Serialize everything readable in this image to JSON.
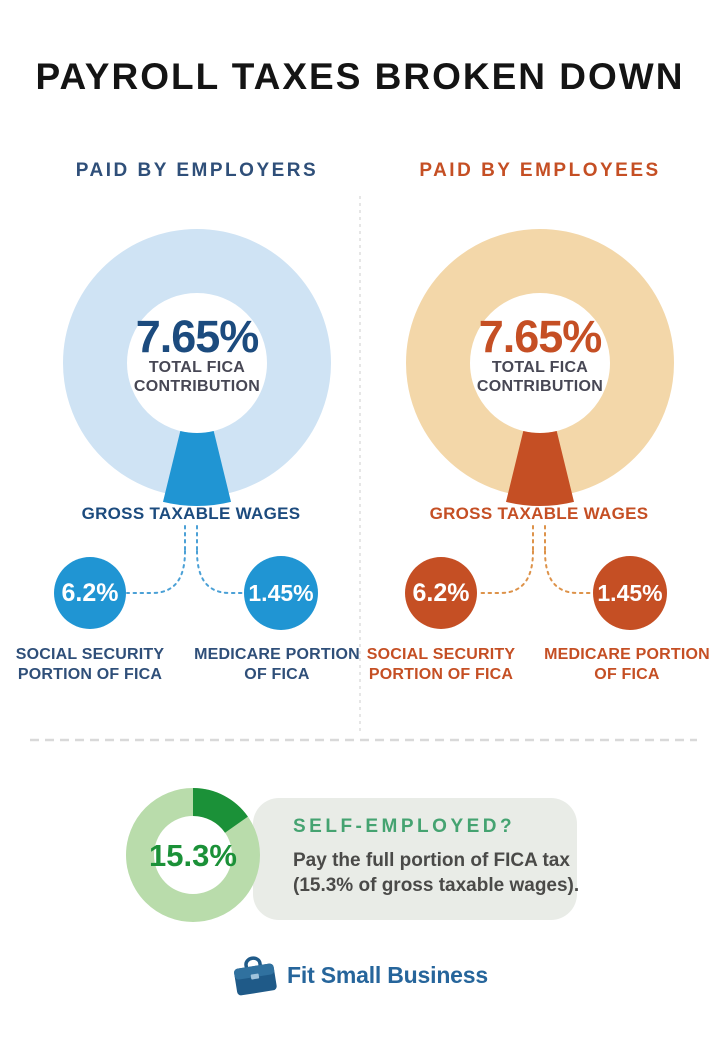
{
  "title": "PAYROLL TAXES BROKEN DOWN",
  "colors": {
    "title_color": "#141414",
    "blue": "#2095d3",
    "blue_ring": "#cfe3f4",
    "blue_dots": "#4aa0d6",
    "navy": "#1c4b7e",
    "navy_label": "#2f4f79",
    "dark_label": "#474754",
    "rust": "#c54f24",
    "rust_ring": "#f3d7a9",
    "orange_dots": "#dd9249",
    "green_dark": "#1b9138",
    "green_ring": "#b9dcab",
    "green_heading": "#45a371",
    "box_bg": "#e9ece7",
    "body_text": "#4a4a48",
    "divider": "#d9d9d9",
    "logo_blue": "#26659b",
    "logo_dark": "#1f5a88",
    "logo_mid": "#30719f",
    "logo_clasp": "#9fc3dc"
  },
  "columns": [
    {
      "header": "PAID BY EMPLOYERS",
      "total_value": "7.65%",
      "total_label_line1": "TOTAL FICA",
      "total_label_line2": "CONTRIBUTION",
      "wages_label": "GROSS TAXABLE WAGES",
      "social": {
        "value": "6.2%",
        "label_line1": "SOCIAL SECURITY",
        "label_line2": "PORTION OF FICA"
      },
      "medicare": {
        "value": "1.45%",
        "label_line1": "MEDICARE PORTION",
        "label_line2": "OF FICA"
      }
    },
    {
      "header": "PAID BY EMPLOYEES",
      "total_value": "7.65%",
      "total_label_line1": "TOTAL FICA",
      "total_label_line2": "CONTRIBUTION",
      "wages_label": "GROSS TAXABLE WAGES",
      "social": {
        "value": "6.2%",
        "label_line1": "SOCIAL SECURITY",
        "label_line2": "PORTION OF FICA"
      },
      "medicare": {
        "value": "1.45%",
        "label_line1": "MEDICARE PORTION",
        "label_line2": "OF FICA"
      }
    }
  ],
  "self_employed": {
    "value": "15.3%",
    "heading": "SELF-EMPLOYED?",
    "body_line1": "Pay the full portion of FICA tax",
    "body_line2": "(15.3% of gross taxable wages)."
  },
  "footer": {
    "brand": "Fit Small Business"
  },
  "chart_data": [
    {
      "type": "pie",
      "variant": "donut",
      "name": "employer-fica-donut",
      "title": "PAID BY EMPLOYERS",
      "center_value_pct": 7.65,
      "center_label": "TOTAL FICA CONTRIBUTION",
      "segment_anchor": "bottom",
      "slices": [
        {
          "label": "Total FICA contribution",
          "value_pct": 7.65,
          "color": "#2095d3"
        },
        {
          "label": "Remainder of gross taxable wages",
          "value_pct": 92.35,
          "color": "#cfe3f4"
        }
      ],
      "breakdown": [
        {
          "label": "SOCIAL SECURITY PORTION OF FICA",
          "value_pct": 6.2
        },
        {
          "label": "MEDICARE PORTION OF FICA",
          "value_pct": 1.45
        }
      ],
      "base_label": "GROSS TAXABLE WAGES"
    },
    {
      "type": "pie",
      "variant": "donut",
      "name": "employee-fica-donut",
      "title": "PAID BY EMPLOYEES",
      "center_value_pct": 7.65,
      "center_label": "TOTAL FICA CONTRIBUTION",
      "segment_anchor": "bottom",
      "slices": [
        {
          "label": "Total FICA contribution",
          "value_pct": 7.65,
          "color": "#c54f24"
        },
        {
          "label": "Remainder of gross taxable wages",
          "value_pct": 92.35,
          "color": "#f3d7a9"
        }
      ],
      "breakdown": [
        {
          "label": "SOCIAL SECURITY PORTION OF FICA",
          "value_pct": 6.2
        },
        {
          "label": "MEDICARE PORTION OF FICA",
          "value_pct": 1.45
        }
      ],
      "base_label": "GROSS TAXABLE WAGES"
    },
    {
      "type": "pie",
      "variant": "donut",
      "name": "self-employed-donut",
      "title": "SELF-EMPLOYED?",
      "center_value_pct": 15.3,
      "segment_anchor": "top",
      "slices": [
        {
          "label": "Self-employed full FICA portion",
          "value_pct": 15.3,
          "color": "#1b9138"
        },
        {
          "label": "Remainder of gross taxable wages",
          "value_pct": 84.7,
          "color": "#b9dcab"
        }
      ]
    }
  ]
}
